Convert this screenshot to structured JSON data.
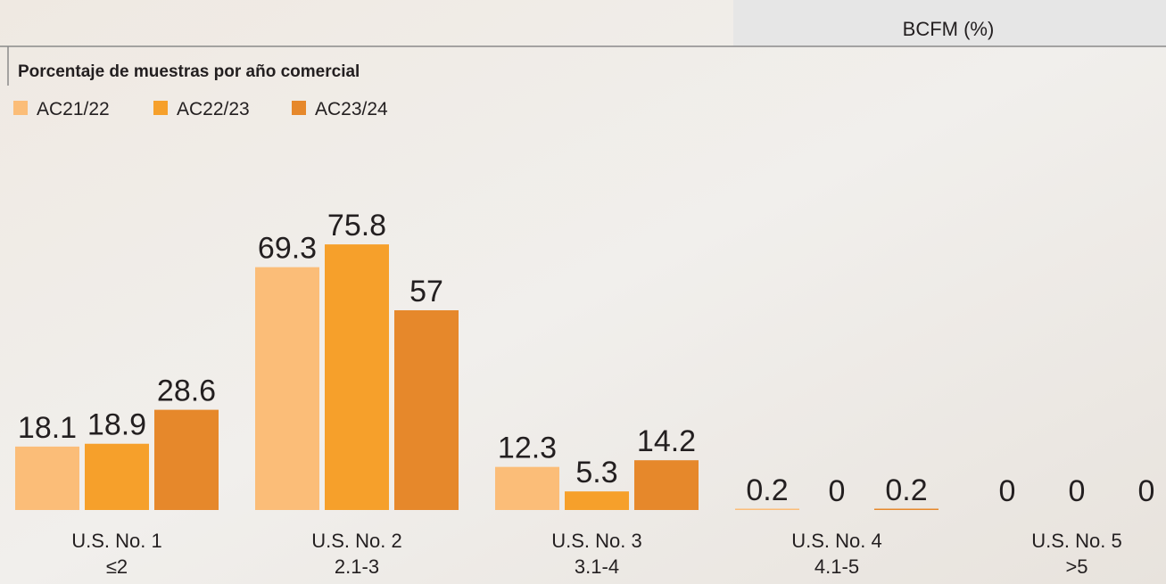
{
  "chart_data": {
    "type": "bar",
    "header": "BCFM (%)",
    "title": "Porcentaje de muestras por año comercial",
    "categories": [
      [
        "U.S. No. 1",
        "≤2"
      ],
      [
        "U.S. No. 2",
        "2.1-3"
      ],
      [
        "U.S. No. 3",
        "3.1-4"
      ],
      [
        "U.S. No. 4",
        "4.1-5"
      ],
      [
        "U.S. No. 5",
        ">5"
      ]
    ],
    "series": [
      {
        "name": "AC21/22",
        "color": "#fbbd78",
        "values": [
          18.1,
          69.3,
          12.3,
          0.2,
          0
        ]
      },
      {
        "name": "AC22/23",
        "color": "#f6a02b",
        "values": [
          18.9,
          75.8,
          5.3,
          0,
          0
        ]
      },
      {
        "name": "AC23/24",
        "color": "#e6882b",
        "values": [
          28.6,
          57,
          14.2,
          0.2,
          0
        ]
      }
    ]
  }
}
